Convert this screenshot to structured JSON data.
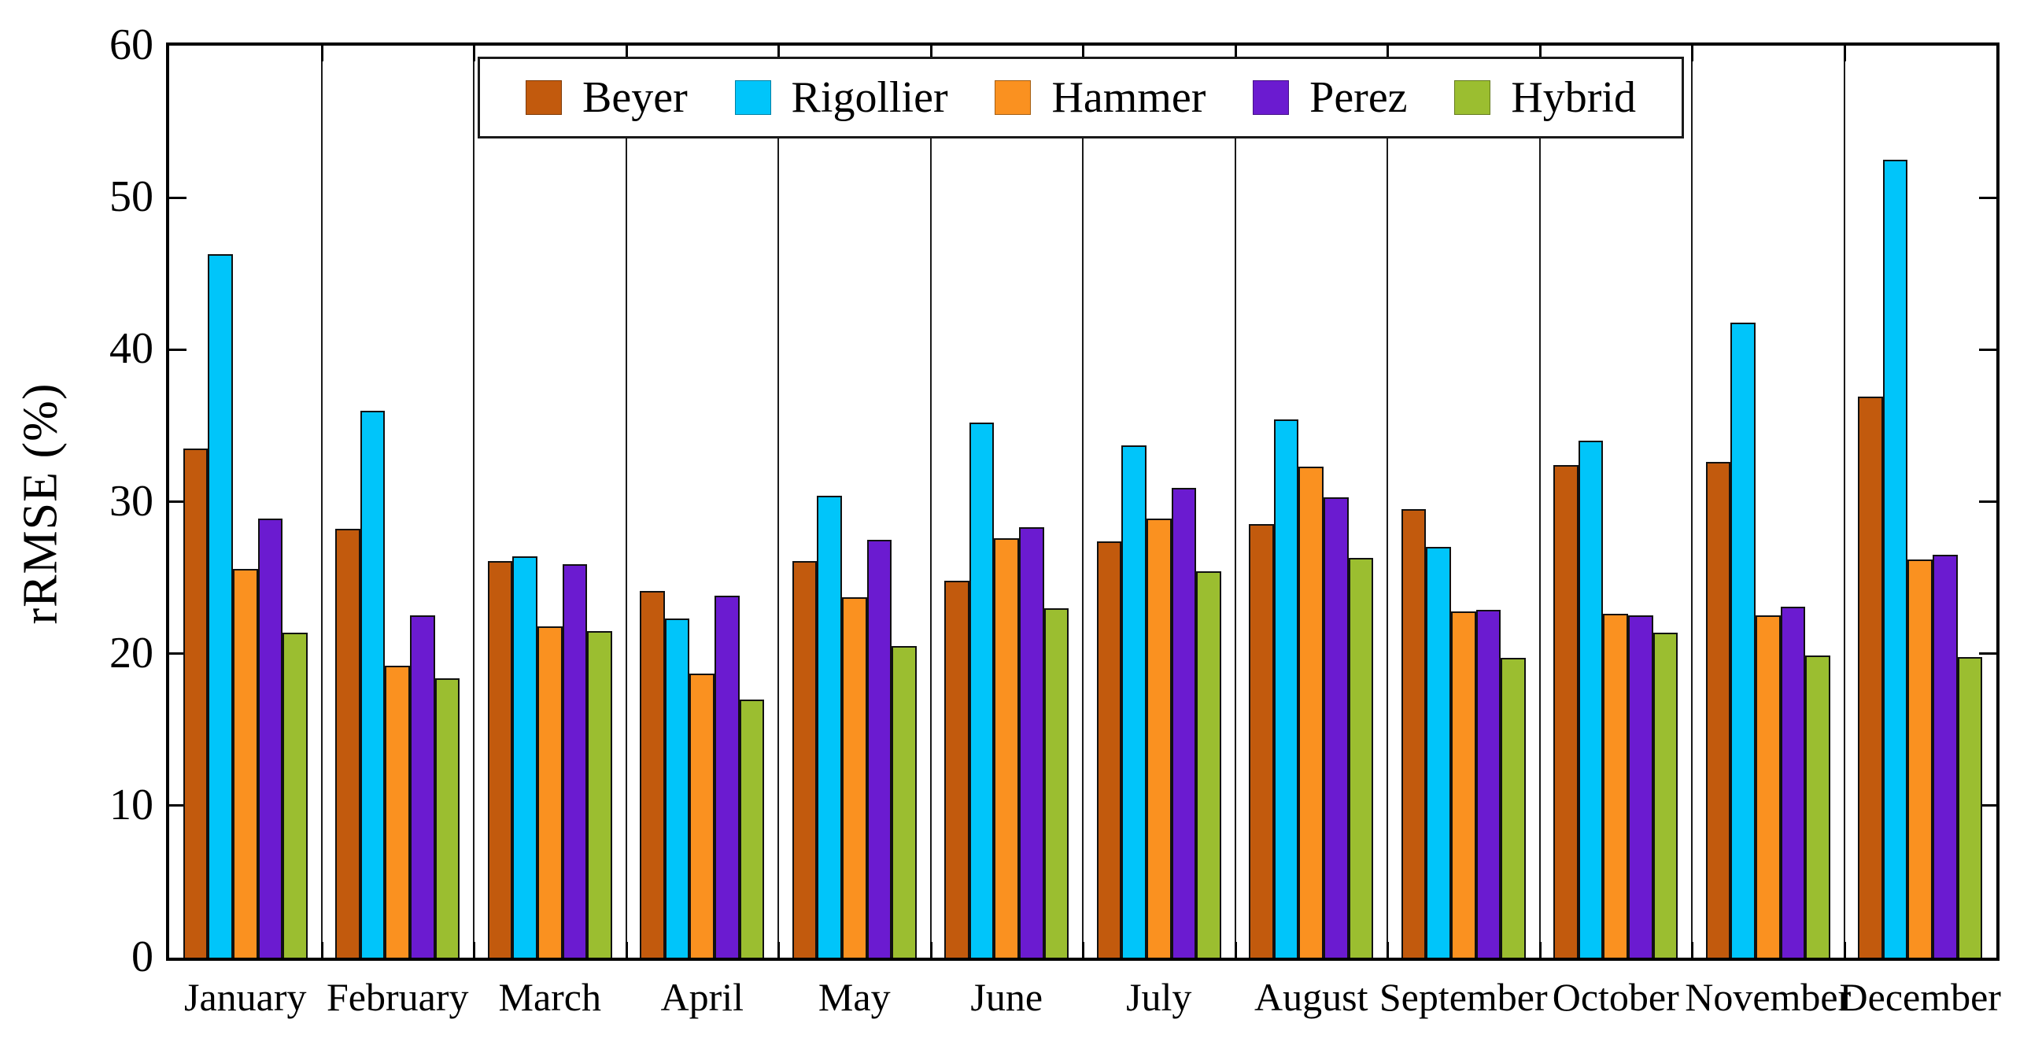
{
  "figure": {
    "background": "#ffffff",
    "axis_color": "#000000"
  },
  "chart_data": {
    "type": "bar",
    "title": "",
    "xlabel": "",
    "ylabel": "rRMSE (%)",
    "ylim": [
      0,
      60
    ],
    "yticks": [
      0,
      10,
      20,
      30,
      40,
      50,
      60
    ],
    "grid": "vertical separator lines between month groups, boxed frame, inward ticks",
    "legend_position": "top-center inside plot, horizontal, boxed",
    "categories": [
      "January",
      "February",
      "March",
      "April",
      "May",
      "June",
      "July",
      "August",
      "September",
      "October",
      "November",
      "December"
    ],
    "series": [
      {
        "name": "Beyer",
        "color": "#C25A0D",
        "values": [
          33.5,
          28.2,
          26.1,
          24.1,
          26.1,
          24.8,
          27.4,
          28.5,
          29.5,
          32.4,
          32.6,
          36.9
        ]
      },
      {
        "name": "Rigollier",
        "color": "#00C5FA",
        "values": [
          46.3,
          36.0,
          26.4,
          22.3,
          30.4,
          35.2,
          33.7,
          35.4,
          27.0,
          34.0,
          41.8,
          52.5
        ]
      },
      {
        "name": "Hammer",
        "color": "#FA9120",
        "values": [
          25.6,
          19.2,
          21.8,
          18.7,
          23.7,
          27.6,
          28.9,
          32.3,
          22.8,
          22.6,
          22.5,
          26.2
        ]
      },
      {
        "name": "Perez",
        "color": "#6B1BD0",
        "values": [
          28.9,
          22.5,
          25.9,
          23.8,
          27.5,
          28.3,
          30.9,
          30.3,
          22.9,
          22.5,
          23.1,
          26.5
        ]
      },
      {
        "name": "Hybrid",
        "color": "#9BBE30",
        "values": [
          21.4,
          18.4,
          21.5,
          17.0,
          20.5,
          23.0,
          25.4,
          26.3,
          19.7,
          21.4,
          19.9,
          19.8
        ]
      }
    ]
  }
}
